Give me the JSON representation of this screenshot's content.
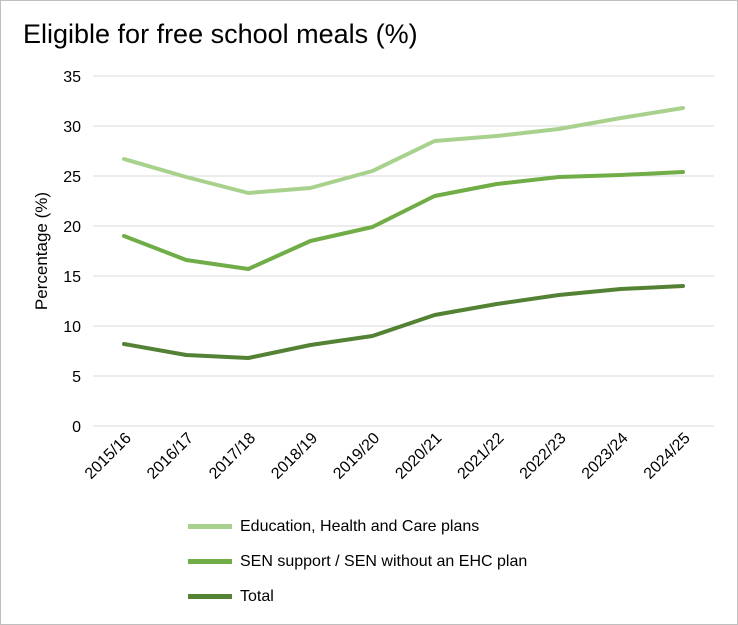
{
  "chart_data": {
    "type": "line",
    "title": "Eligible for free school meals (%)",
    "xlabel": "",
    "ylabel": "Percentage (%)",
    "ylim": [
      0,
      35
    ],
    "yticks": [
      "0",
      "5",
      "10",
      "15",
      "20",
      "25",
      "30",
      "35"
    ],
    "grid": true,
    "legend_position": "bottom",
    "categories": [
      "2015/16",
      "2016/17",
      "2017/18",
      "2018/19",
      "2019/20",
      "2020/21",
      "2021/22",
      "2022/23",
      "2023/24",
      "2024/25"
    ],
    "series": [
      {
        "name": "Education, Health and Care plans",
        "color": "#a9d18e",
        "values": [
          26.7,
          24.9,
          23.3,
          23.8,
          25.5,
          28.5,
          29.0,
          29.7,
          30.8,
          31.8
        ]
      },
      {
        "name": "SEN support / SEN without an EHC plan",
        "color": "#70ad47",
        "values": [
          19.0,
          16.6,
          15.7,
          18.5,
          19.9,
          23.0,
          24.2,
          24.9,
          25.1,
          25.4
        ]
      },
      {
        "name": "Total",
        "color": "#548235",
        "values": [
          8.2,
          7.1,
          6.8,
          8.1,
          9.0,
          11.1,
          12.2,
          13.1,
          13.7,
          14.0
        ]
      }
    ]
  }
}
